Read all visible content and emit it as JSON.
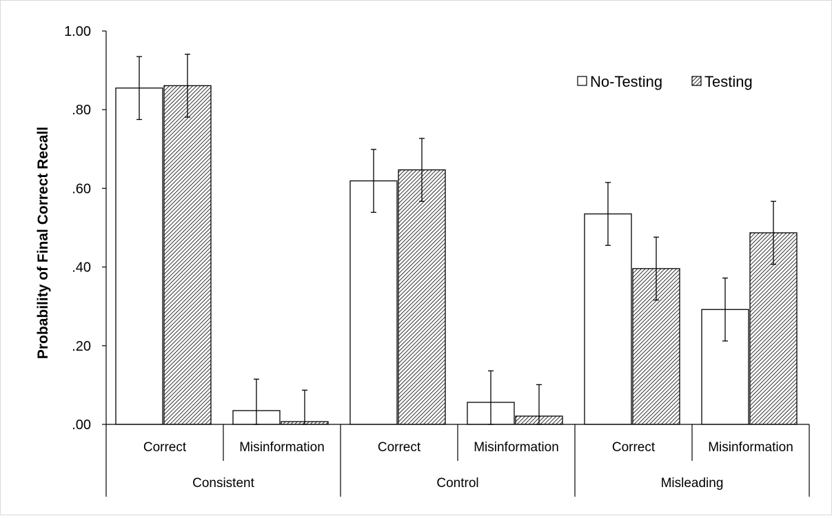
{
  "chart_data": {
    "type": "bar",
    "ylabel": "Probability of Final Correct Recall",
    "ylim": [
      0,
      1
    ],
    "yticks": [
      {
        "value": 0.0,
        "label": ".00"
      },
      {
        "value": 0.2,
        "label": ".20"
      },
      {
        "value": 0.4,
        "label": ".40"
      },
      {
        "value": 0.6,
        "label": ".60"
      },
      {
        "value": 0.8,
        "label": ".80"
      },
      {
        "value": 1.0,
        "label": "1.00"
      }
    ],
    "groups": [
      "Consistent",
      "Control",
      "Misleading"
    ],
    "categories": [
      "Correct",
      "Misinformation",
      "Correct",
      "Misinformation",
      "Correct",
      "Misinformation"
    ],
    "series": [
      {
        "name": "No-Testing",
        "pattern": "none",
        "values": [
          0.855,
          0.035,
          0.619,
          0.056,
          0.535,
          0.292
        ],
        "errors": [
          0.08,
          0.08,
          0.08,
          0.08,
          0.08,
          0.08
        ]
      },
      {
        "name": "Testing",
        "pattern": "hatched",
        "values": [
          0.861,
          0.007,
          0.647,
          0.021,
          0.396,
          0.487
        ],
        "errors": [
          0.08,
          0.08,
          0.08,
          0.08,
          0.08,
          0.08
        ]
      }
    ],
    "legend_position": "top-right",
    "grid": false
  }
}
